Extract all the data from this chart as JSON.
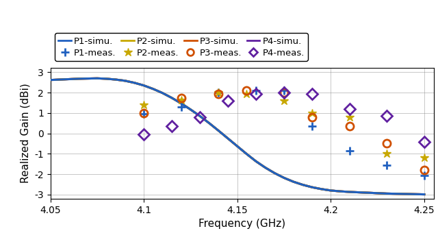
{
  "xlabel": "Frequency (GHz)",
  "ylabel": "Realized Gain (dBi)",
  "xlim": [
    4.05,
    4.255
  ],
  "ylim": [
    -3.2,
    3.2
  ],
  "yticks": [
    -3,
    -2,
    -1,
    0,
    1,
    2,
    3
  ],
  "xticks": [
    4.05,
    4.1,
    4.15,
    4.2,
    4.25
  ],
  "xticklabels": [
    "4.05",
    "4.1",
    "4.15",
    "4.2",
    "4.25"
  ],
  "c_P1": "#2060c0",
  "c_P2": "#c8a800",
  "c_P3": "#d05000",
  "c_P4": "#6020a0",
  "simu_freq": [
    4.05,
    4.055,
    4.06,
    4.065,
    4.07,
    4.075,
    4.08,
    4.085,
    4.09,
    4.095,
    4.1,
    4.105,
    4.11,
    4.115,
    4.12,
    4.125,
    4.13,
    4.135,
    4.14,
    4.145,
    4.15,
    4.155,
    4.16,
    4.165,
    4.17,
    4.175,
    4.18,
    4.185,
    4.19,
    4.195,
    4.2,
    4.205,
    4.21,
    4.215,
    4.22,
    4.225,
    4.23,
    4.235,
    4.24,
    4.245,
    4.25
  ],
  "simu_gain": [
    2.62,
    2.64,
    2.66,
    2.68,
    2.69,
    2.7,
    2.68,
    2.64,
    2.58,
    2.48,
    2.35,
    2.18,
    1.98,
    1.74,
    1.47,
    1.17,
    0.85,
    0.5,
    0.13,
    -0.25,
    -0.63,
    -1.01,
    -1.37,
    -1.68,
    -1.95,
    -2.18,
    -2.37,
    -2.52,
    -2.64,
    -2.73,
    -2.8,
    -2.84,
    -2.87,
    -2.89,
    -2.91,
    -2.93,
    -2.95,
    -2.96,
    -2.97,
    -2.98,
    -2.99
  ],
  "meas_freq_P1": [
    4.1,
    4.12,
    4.14,
    4.16,
    4.175,
    4.19,
    4.21,
    4.23,
    4.25
  ],
  "meas_gain_P1": [
    0.95,
    1.3,
    2.0,
    2.1,
    2.1,
    0.35,
    -0.85,
    -1.55,
    -2.05
  ],
  "meas_freq_P2": [
    4.1,
    4.12,
    4.14,
    4.155,
    4.175,
    4.19,
    4.21,
    4.23,
    4.25
  ],
  "meas_gain_P2": [
    1.4,
    1.65,
    2.0,
    1.95,
    1.6,
    1.0,
    0.8,
    -1.0,
    -1.2
  ],
  "meas_freq_P3": [
    4.1,
    4.12,
    4.14,
    4.155,
    4.175,
    4.19,
    4.21,
    4.23,
    4.25
  ],
  "meas_gain_P3": [
    1.0,
    1.75,
    1.95,
    2.1,
    2.0,
    0.8,
    0.35,
    -0.5,
    -1.8
  ],
  "meas_freq_P4": [
    4.1,
    4.115,
    4.13,
    4.145,
    4.16,
    4.175,
    4.19,
    4.21,
    4.23,
    4.25
  ],
  "meas_gain_P4": [
    -0.05,
    0.35,
    0.8,
    1.6,
    1.95,
    2.0,
    1.95,
    1.2,
    0.85,
    -0.4
  ],
  "legend_labels_row1": [
    "P1-simu.",
    "P1-meas.",
    "P2-simu.",
    "P2-meas."
  ],
  "legend_labels_row2": [
    "P3-simu.",
    "P3-meas.",
    "P4-simu.",
    "P4-meas."
  ]
}
